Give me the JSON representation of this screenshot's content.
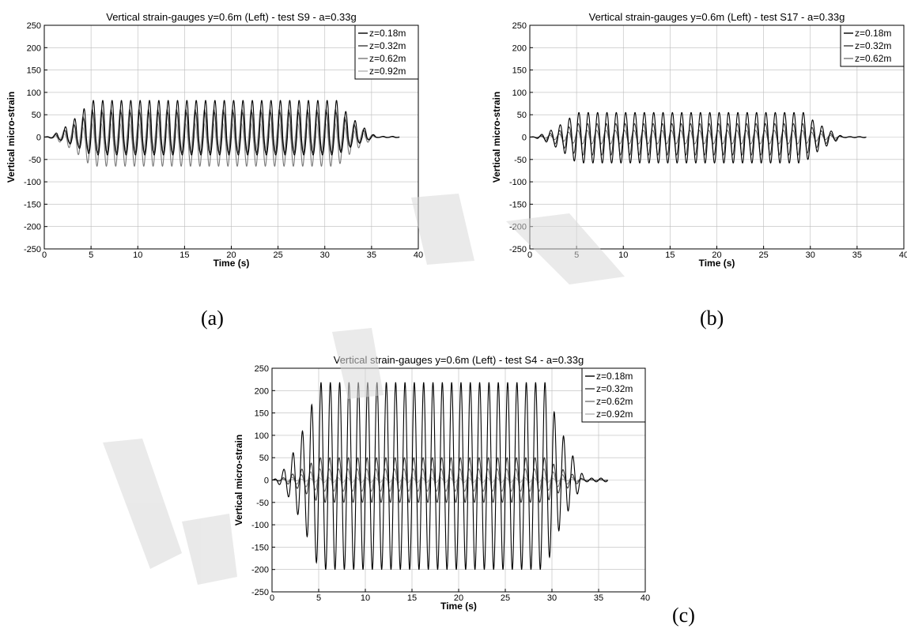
{
  "captions": [
    "(a)",
    "(b)",
    "(c)"
  ],
  "series_colors": [
    "#000000",
    "#3c3c3c",
    "#787878",
    "#b4b4b4"
  ],
  "chart_data": [
    {
      "type": "line",
      "title": "Vertical strain-gauges y=0.6m (Left) - test S9 - a=0.33g",
      "xlabel": "Time (s)",
      "ylabel": "Vertical micro-strain",
      "xlim": [
        0,
        40
      ],
      "ylim": [
        -250,
        250
      ],
      "xticks": [
        0,
        5,
        10,
        15,
        20,
        25,
        30,
        35,
        40
      ],
      "yticks": [
        -250,
        -200,
        -150,
        -100,
        -50,
        0,
        50,
        100,
        150,
        200,
        250
      ],
      "grid": true,
      "legend": "top-right",
      "duration": 38,
      "series": [
        {
          "name": "z=0.18m",
          "peak": 82,
          "trough": -40
        },
        {
          "name": "z=0.32m",
          "peak": 55,
          "trough": -35
        },
        {
          "name": "z=0.62m",
          "peak": 62,
          "trough": -65
        },
        {
          "name": "z=0.92m",
          "peak": 30,
          "trough": -30
        }
      ]
    },
    {
      "type": "line",
      "title": "Vertical strain-gauges y=0.6m (Left) - test S17 - a=0.33g",
      "xlabel": "Time (s)",
      "ylabel": "Vertical micro-strain",
      "xlim": [
        0,
        40
      ],
      "ylim": [
        -250,
        250
      ],
      "xticks": [
        0,
        5,
        10,
        15,
        20,
        25,
        30,
        35,
        40
      ],
      "yticks": [
        -250,
        -200,
        -150,
        -100,
        -50,
        0,
        50,
        100,
        150,
        200,
        250
      ],
      "grid": true,
      "legend": "top-right",
      "duration": 36,
      "series": [
        {
          "name": "z=0.18m",
          "peak": 55,
          "trough": -58
        },
        {
          "name": "z=0.32m",
          "peak": 30,
          "trough": -40
        },
        {
          "name": "z=0.62m",
          "peak": 15,
          "trough": -15
        }
      ]
    },
    {
      "type": "line",
      "title": "Vertical strain-gauges y=0.6m (Left) - test S4 - a=0.33g",
      "xlabel": "Time (s)",
      "ylabel": "Vertical micro-strain",
      "xlim": [
        0,
        40
      ],
      "ylim": [
        -250,
        250
      ],
      "xticks": [
        0,
        5,
        10,
        15,
        20,
        25,
        30,
        35,
        40
      ],
      "yticks": [
        -250,
        -200,
        -150,
        -100,
        -50,
        0,
        50,
        100,
        150,
        200,
        250
      ],
      "grid": true,
      "legend": "top-right",
      "duration": 36,
      "series": [
        {
          "name": "z=0.18m",
          "peak": 218,
          "trough": -200
        },
        {
          "name": "z=0.32m",
          "peak": 50,
          "trough": -50
        },
        {
          "name": "z=0.62m",
          "peak": 25,
          "trough": -25
        },
        {
          "name": "z=0.92m",
          "peak": 5,
          "trough": -5
        }
      ]
    }
  ]
}
